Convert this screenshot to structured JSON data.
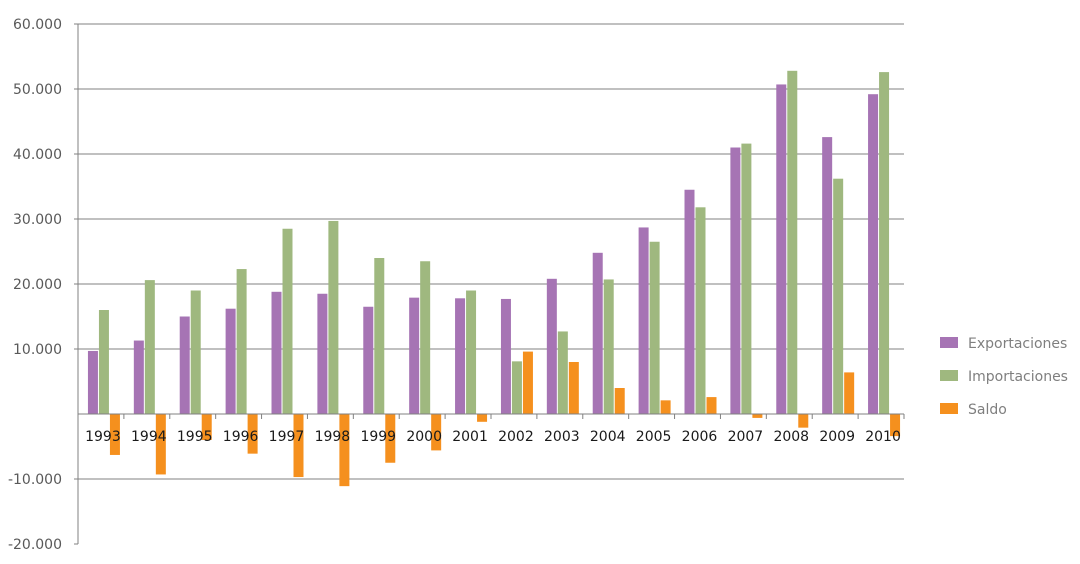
{
  "chart_data": {
    "type": "bar",
    "title": "",
    "xlabel": "",
    "ylabel": "",
    "ylim": [
      -20000,
      60000
    ],
    "yticks": [
      -20000,
      -10000,
      10000,
      20000,
      30000,
      40000,
      50000,
      60000
    ],
    "ytick_labels": [
      "-20.000",
      "-10.000",
      "10.000",
      "20.000",
      "30.000",
      "40.000",
      "50.000",
      "60.000"
    ],
    "grid": true,
    "legend_position": "right",
    "categories": [
      "1993",
      "1994",
      "1995",
      "1996",
      "1997",
      "1998",
      "1999",
      "2000",
      "2001",
      "2002",
      "2003",
      "2004",
      "2005",
      "2006",
      "2007",
      "2008",
      "2009",
      "2010"
    ],
    "series": [
      {
        "name": "Exportaciones",
        "color": "#a674b4",
        "values": [
          9700,
          11300,
          15000,
          16200,
          18800,
          18500,
          16500,
          17900,
          17800,
          17700,
          20800,
          24800,
          28700,
          34500,
          41000,
          50700,
          42600,
          49200
        ]
      },
      {
        "name": "Importaciones",
        "color": "#9fb87f",
        "values": [
          16000,
          20600,
          19000,
          22300,
          28500,
          29700,
          24000,
          23500,
          19000,
          8100,
          12700,
          20700,
          26500,
          31800,
          41600,
          52800,
          36200,
          52600
        ]
      },
      {
        "name": "Saldo",
        "color": "#f5901e",
        "values": [
          -6300,
          -9300,
          -4000,
          -6100,
          -9700,
          -11100,
          -7500,
          -5600,
          -1200,
          9600,
          8000,
          4000,
          2100,
          2600,
          -600,
          -2100,
          6400,
          -3400
        ]
      }
    ]
  }
}
